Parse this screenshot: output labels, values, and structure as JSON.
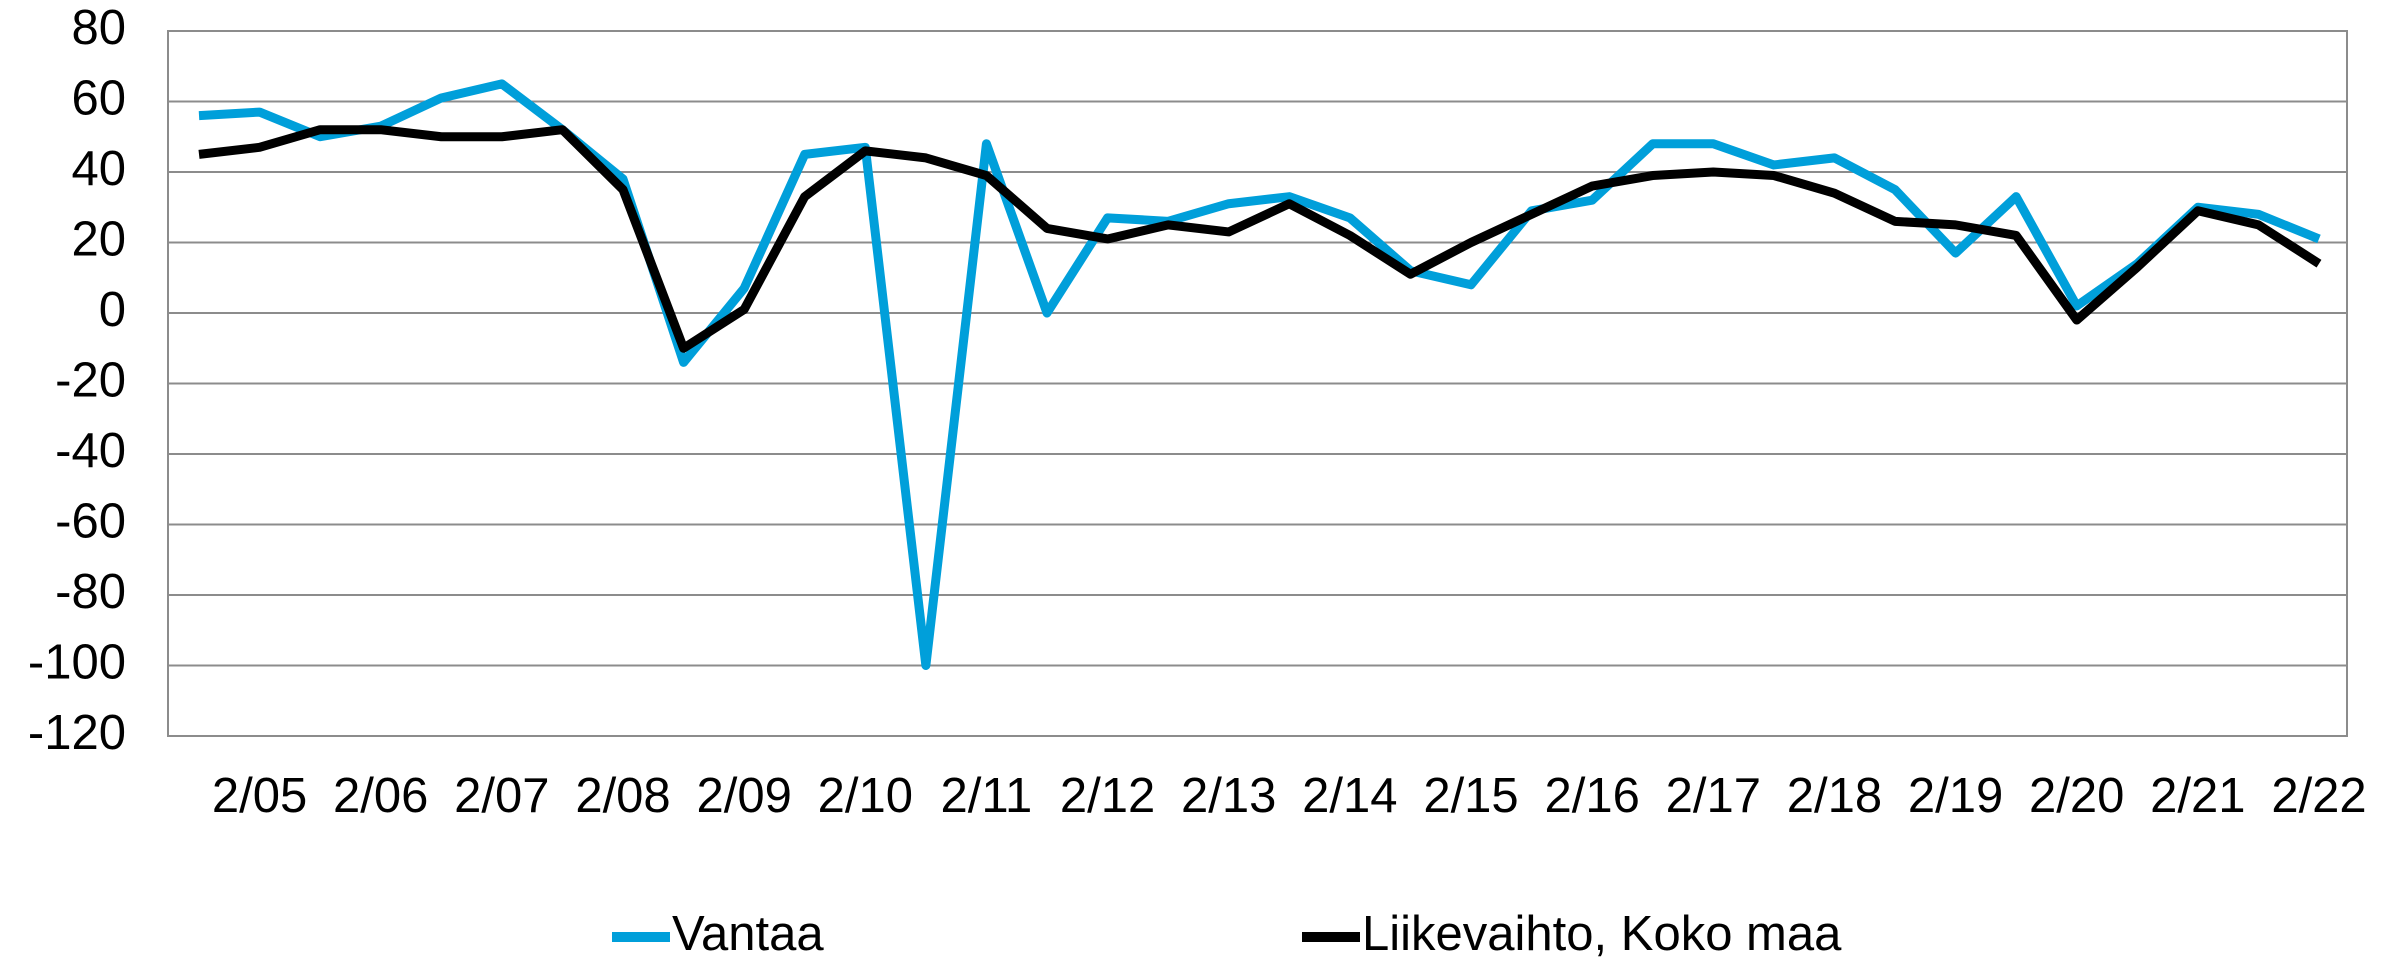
{
  "chart_data": {
    "type": "line",
    "categories": [
      null,
      "2/05",
      null,
      "2/06",
      null,
      "2/07",
      null,
      "2/08",
      null,
      "2/09",
      null,
      "2/10",
      null,
      "2/11",
      null,
      "2/12",
      null,
      "2/13",
      null,
      "2/14",
      null,
      "2/15",
      null,
      "2/16",
      null,
      "2/17",
      null,
      "2/18",
      null,
      "2/19",
      null,
      "2/20",
      null,
      "2/21",
      null,
      "2/22"
    ],
    "series": [
      {
        "name": "Vantaa",
        "color": "#009fda",
        "values": [
          56,
          57,
          50,
          53,
          61,
          65,
          52,
          38,
          -14,
          7,
          45,
          47,
          -100,
          48,
          0,
          27,
          26,
          31,
          33,
          27,
          12,
          8,
          29,
          32,
          48,
          48,
          42,
          44,
          35,
          17,
          33,
          2,
          14,
          30,
          28,
          21
        ]
      },
      {
        "name": "Liikevaihto, Koko maa",
        "color": "#000000",
        "values": [
          45,
          47,
          52,
          52,
          50,
          50,
          52,
          35,
          -10,
          1,
          33,
          46,
          44,
          39,
          24,
          21,
          25,
          23,
          31,
          22,
          11,
          20,
          28,
          36,
          39,
          40,
          39,
          34,
          26,
          25,
          22,
          -2,
          13,
          29,
          25,
          14
        ]
      }
    ],
    "ylim": [
      -120,
      80
    ],
    "yticks": [
      -120,
      -100,
      -80,
      -60,
      -40,
      -20,
      0,
      20,
      40,
      60,
      80
    ],
    "grid": true,
    "legend": "bottom"
  }
}
